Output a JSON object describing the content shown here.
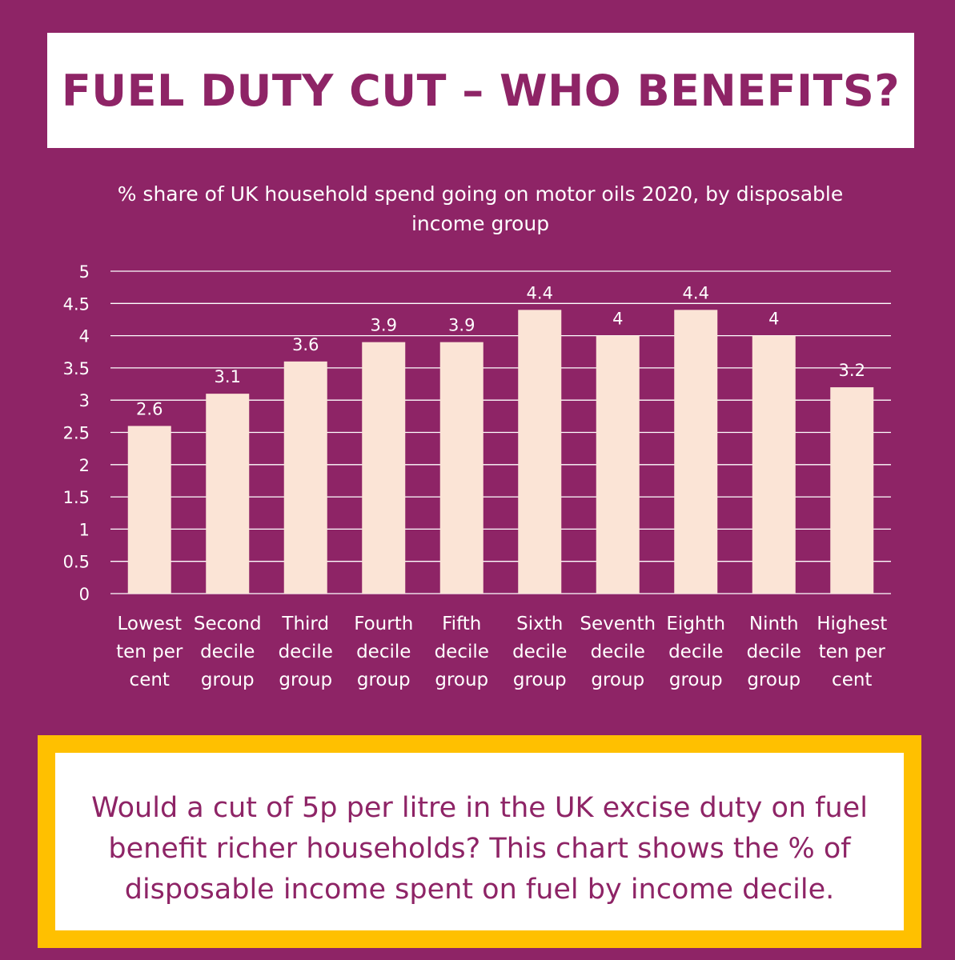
{
  "headline": "FUEL DUTY CUT – WHO BENEFITS?",
  "caption": "Would a cut of 5p per litre in the UK excise duty on fuel benefit richer households? This chart shows the % of disposable income spent on fuel by income decile.",
  "colors": {
    "background": "#8e2466",
    "bar": "#fbe4d6",
    "frame": "#ffc000",
    "text": "#ffffff"
  },
  "chart_data": {
    "type": "bar",
    "title": "% share of UK household spend going on motor oils 2020, by disposable income group",
    "categories": [
      [
        "Lowest",
        "ten per",
        "cent"
      ],
      [
        "Second",
        "decile",
        "group"
      ],
      [
        "Third",
        "decile",
        "group"
      ],
      [
        "Fourth",
        "decile",
        "group"
      ],
      [
        "Fifth",
        "decile",
        "group"
      ],
      [
        "Sixth",
        "decile",
        "group"
      ],
      [
        "Seventh",
        "decile",
        "group"
      ],
      [
        "Eighth",
        "decile",
        "group"
      ],
      [
        "Ninth",
        "decile",
        "group"
      ],
      [
        "Highest",
        "ten per",
        "cent"
      ]
    ],
    "values": [
      2.6,
      3.1,
      3.6,
      3.9,
      3.9,
      4.4,
      4.0,
      4.4,
      4.0,
      3.2
    ],
    "data_labels": [
      "2.6",
      "3.1",
      "3.6",
      "3.9",
      "3.9",
      "4.4",
      "4",
      "4.4",
      "4",
      "3.2"
    ],
    "yticks": [
      "0",
      "0.5",
      "1",
      "1.5",
      "2",
      "2.5",
      "3",
      "3.5",
      "4",
      "4.5",
      "5"
    ],
    "ylim": [
      0,
      5
    ],
    "grid": true,
    "legend": "none"
  }
}
